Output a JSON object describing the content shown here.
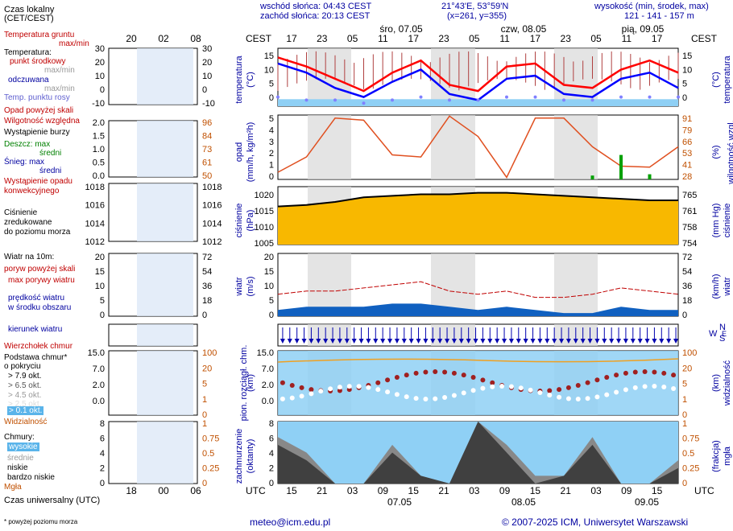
{
  "header": {
    "sunrise": "wschód słońca: 04:43 CEST",
    "sunset": "zachód słońca: 20:13 CEST",
    "coords": "21°43'E, 53°59'N",
    "grid": "(x=261,  y=355)",
    "height_title": "wysokość (min, środek, max)",
    "heights": "121 - 141 - 157 m"
  },
  "time": {
    "local_label": "Czas lokalny\n(CET/CEST)",
    "local_left": "CEST",
    "local_right": "CEST",
    "utc_left": "UTC",
    "utc_right": "UTC",
    "local_hours": [
      "17",
      "23",
      "05",
      "11",
      "17",
      "23",
      "05",
      "11",
      "17",
      "23",
      "05",
      "11",
      "17"
    ],
    "utc_hours": [
      "15",
      "21",
      "03",
      "09",
      "15",
      "21",
      "03",
      "09",
      "15",
      "21",
      "03",
      "09",
      "15"
    ],
    "days_top": [
      "śro, 07.05",
      "czw, 08.05",
      "pią, 09.05"
    ],
    "days_bottom": [
      "07.05",
      "08.05",
      "09.05"
    ],
    "legend_local_ticks": [
      "20",
      "02",
      "08"
    ],
    "legend_utc_ticks": [
      "18",
      "00",
      "06"
    ],
    "utc_label": "Czas uniwersalny (UTC)"
  },
  "legend": {
    "soil": "Temperatura gruntu",
    "soil2": "max/min",
    "temp": "Temperatura:",
    "temp_mid": "punkt środkowy",
    "temp_mm": "max/min",
    "felt": "odczuwana",
    "felt_mm": "max/min",
    "dew": "Temp. punktu rosy",
    "opad_above": "Opad powyżej skali",
    "humidity": "Wilgotność względna",
    "storm": "Wystąpienie burzy",
    "rain_max": "Deszcz: max",
    "rain_avg": "średni",
    "snow_max": "Śnieg:     max",
    "snow_avg": "średni",
    "conv": "Wystąpienie opadu",
    "conv2": "konwekcyjnego",
    "slp1": "Ciśnienie",
    "slp2": "zredukowane",
    "slp3": "do poziomu morza",
    "wind_title": "Wiatr na 10m:",
    "gust_above": "poryw powyżej skali",
    "gust_max": "max porywy wiatru",
    "wind_avg": "prędkość wiatru",
    "wind_avg2": "w środku obszaru",
    "wind_dir": "kierunek wiatru",
    "cloud_top": "Wierzchołek chmur",
    "cloud_base": "Podstawa chmur*",
    "cloud_base2": "o pokryciu",
    "okt": [
      "> 7.9 okt.",
      "> 6.5 okt.",
      "> 4.5 okt.",
      "> 2.5 okt.",
      "> 0.1 okt."
    ],
    "visibility": "Widzialność",
    "clouds": "Chmury:",
    "cl_high": "wysokie",
    "cl_mid": "średnie",
    "cl_low": "niskie",
    "cl_vlow": "bardzo niskie",
    "fog": "Mgła",
    "footnote": "* powyżej poziomu morza"
  },
  "axes": {
    "temp_left": [
      "15",
      "10",
      "5",
      "0"
    ],
    "temp_right": [
      "15",
      "10",
      "5",
      "0"
    ],
    "leg_temp_left": [
      "30",
      "20",
      "10",
      "0",
      "-10"
    ],
    "leg_temp_right": [
      "30",
      "20",
      "10",
      "0",
      "-10"
    ],
    "precip_left": [
      "5",
      "4",
      "3",
      "2",
      "1",
      "0"
    ],
    "hum_right": [
      "91",
      "79",
      "66",
      "53",
      "41",
      "28"
    ],
    "leg_precip_left": [
      "2.0",
      "1.5",
      "1.0",
      "0.5",
      "0.0"
    ],
    "leg_hum_right": [
      "96",
      "84",
      "73",
      "61",
      "50"
    ],
    "pres_left": [
      "1020",
      "1015",
      "1010",
      "1005"
    ],
    "pres_right": [
      "765",
      "761",
      "758",
      "754"
    ],
    "leg_pres_left": [
      "1018",
      "1016",
      "1014",
      "1012"
    ],
    "leg_pres_right": [
      "1018",
      "1016",
      "1014",
      "1012"
    ],
    "wind_left": [
      "20",
      "15",
      "10",
      "5",
      "0"
    ],
    "wind_right": [
      "72",
      "54",
      "36",
      "18",
      "0"
    ],
    "cb_left": [
      "15.0",
      "7.0",
      "2.0",
      "0.0"
    ],
    "vis_right": [
      "100",
      "20",
      "5",
      "1",
      "0"
    ],
    "leg_cb_left": [
      "15.0",
      "7.0",
      "2.0",
      "0.0"
    ],
    "leg_vis_right": [
      "100",
      "20",
      "5",
      "1",
      "0"
    ],
    "cc_left": [
      "8",
      "6",
      "4",
      "2",
      "0"
    ],
    "fog_right": [
      "1",
      "0.75",
      "0.5",
      "0.25",
      "0"
    ],
    "leg_cc_left": [
      "8",
      "6",
      "4",
      "2",
      "0"
    ],
    "leg_fog_right": [
      "1",
      "0.75",
      "0.5",
      "0.25",
      "0"
    ]
  },
  "panel_labels": {
    "temp": "temperatura",
    "temp_unit": "(°C)",
    "precip": "opad",
    "precip_unit": "(mm/h, kg/m²h)",
    "hum": "wilgotność wzgl.",
    "hum_unit": "(%)",
    "pres": "ciśnienie",
    "pres_unit": "(hPa)",
    "pres_r": "ciśnienie",
    "pres_r_unit": "(mm Hg)",
    "wind": "wiatr",
    "wind_unit": "(m/s)",
    "wind_r": "wiatr",
    "wind_r_unit": "(km/h)",
    "cb": "pion. rozciągł. chm.",
    "cb_unit": "(km)",
    "vis": "widzialność",
    "vis_unit": "(km)",
    "cc": "zachmurzenie",
    "cc_unit": "(oktanty)",
    "fog": "mgła",
    "fog_unit": "(frakcja)",
    "compass": [
      "W",
      "N",
      "E",
      "S"
    ]
  },
  "footer": {
    "email": "meteo@icm.edu.pl",
    "copyright": "© 2007-2025 ICM, Uniwersytet Warszawski"
  },
  "colors": {
    "temp": "#ff0000",
    "felt": "#0000ff",
    "dew": "#8080ff",
    "humidity": "#e05020",
    "pressure": "#000000",
    "rain": "#00a000",
    "wind": "#0000b0",
    "gust": "#c00000",
    "night": "#d8d8d8"
  },
  "chart_data": [
    {
      "type": "line",
      "title": "temperatura",
      "ylabel": "°C",
      "x": [
        0,
        6,
        12,
        18,
        24,
        30,
        36,
        42,
        48,
        54,
        60,
        66,
        72,
        78,
        84
      ],
      "ylim": [
        -2,
        17
      ],
      "series": [
        {
          "name": "temperatura (punkt środkowy)",
          "values": [
            14,
            11,
            7,
            3,
            9,
            13,
            5,
            3,
            11,
            12,
            5,
            4,
            10,
            13,
            9
          ]
        },
        {
          "name": "temperatura odczuwana",
          "values": [
            12,
            9,
            4,
            1,
            6,
            10,
            2,
            0,
            7,
            8,
            2,
            1,
            7,
            9,
            4
          ]
        },
        {
          "name": "temperatura punktu rosy",
          "values": [
            1,
            0,
            0,
            -1,
            0,
            1,
            0,
            0,
            1,
            1,
            0,
            0,
            1,
            1,
            1
          ]
        }
      ]
    },
    {
      "type": "line",
      "title": "opad / wilgotność względna",
      "ylabel": "mm/h",
      "x": [
        0,
        6,
        12,
        18,
        24,
        30,
        36,
        42,
        48,
        54,
        60,
        66,
        72,
        78,
        84
      ],
      "ylim": [
        0,
        5
      ],
      "series": [
        {
          "name": "wilgotność względna (%)",
          "values": [
            35,
            50,
            88,
            86,
            52,
            50,
            90,
            70,
            30,
            88,
            88,
            60,
            41,
            40,
            60
          ]
        },
        {
          "name": "opad max (mm/h)",
          "values": [
            0,
            0,
            0,
            0,
            0,
            0,
            0,
            0,
            0,
            0,
            0,
            0.3,
            1.9,
            0.4,
            0
          ]
        }
      ]
    },
    {
      "type": "line",
      "title": "ciśnienie",
      "ylabel": "hPa",
      "x": [
        0,
        6,
        12,
        18,
        24,
        30,
        36,
        42,
        48,
        54,
        60,
        66,
        72,
        78,
        84
      ],
      "ylim": [
        1004,
        1023
      ],
      "series": [
        {
          "name": "ciśnienie zredukowane",
          "values": [
            1016.5,
            1017,
            1018,
            1019.5,
            1020,
            1020.5,
            1020.5,
            1021,
            1021,
            1020.5,
            1020,
            1019.5,
            1019,
            1018.5,
            1018.5
          ]
        }
      ]
    },
    {
      "type": "line",
      "title": "wiatr",
      "ylabel": "m/s",
      "x": [
        0,
        6,
        12,
        18,
        24,
        30,
        36,
        42,
        48,
        54,
        60,
        66,
        72,
        78,
        84
      ],
      "ylim": [
        0,
        20
      ],
      "series": [
        {
          "name": "max porywy wiatru",
          "values": [
            7,
            8,
            8,
            9,
            10,
            11,
            8,
            7,
            8,
            6,
            6,
            7,
            9,
            8,
            7
          ]
        },
        {
          "name": "prędkość wiatru",
          "values": [
            2,
            3,
            3,
            3,
            4,
            4,
            3,
            2,
            3,
            2,
            1,
            1,
            3,
            2,
            2
          ]
        }
      ]
    },
    {
      "type": "area",
      "title": "zachmurzenie",
      "ylabel": "oktanty",
      "x": [
        0,
        6,
        12,
        18,
        24,
        30,
        36,
        42,
        48,
        54,
        60,
        66,
        72,
        78,
        84
      ],
      "ylim": [
        0,
        8
      ],
      "series": [
        {
          "name": "niskie",
          "values": [
            5,
            3,
            0,
            0,
            4,
            1,
            0,
            8,
            4,
            0,
            1,
            5,
            0,
            0,
            2
          ]
        },
        {
          "name": "średnie",
          "values": [
            6,
            4,
            0,
            0,
            5,
            1,
            0,
            8,
            5,
            1,
            1,
            6,
            0,
            0,
            3
          ]
        }
      ]
    }
  ]
}
